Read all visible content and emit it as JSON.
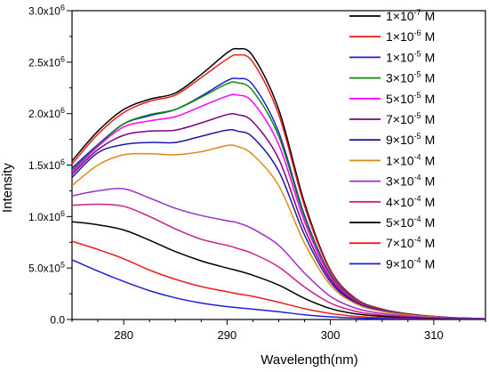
{
  "chart_data": {
    "type": "line",
    "title": "",
    "xlabel": "Wavelength(nm)",
    "ylabel": "Intensity",
    "xlim": [
      275,
      315
    ],
    "ylim": [
      0,
      3000000
    ],
    "x_ticks": [
      280,
      290,
      300,
      310
    ],
    "y_ticks": [
      {
        "mantissa": "0.0",
        "exp": ""
      },
      {
        "mantissa": "5.0x10",
        "exp": "5"
      },
      {
        "mantissa": "1.0x10",
        "exp": "6"
      },
      {
        "mantissa": "1.5x10",
        "exp": "6"
      },
      {
        "mantissa": "2.0x10",
        "exp": "6"
      },
      {
        "mantissa": "2.5x10",
        "exp": "6"
      },
      {
        "mantissa": "3.0x10",
        "exp": "6"
      }
    ],
    "legend_position": "top-right",
    "grid": false,
    "x": [
      275,
      277.5,
      280,
      282.5,
      285,
      287.5,
      290,
      291,
      292.5,
      295,
      297.5,
      300,
      302.5,
      305,
      307.5,
      310,
      312.5,
      315
    ],
    "series": [
      {
        "name_base": "1×10",
        "exp": "-7",
        "unit": "M",
        "color": "#000000",
        "values": [
          1540000,
          1830000,
          2040000,
          2140000,
          2200000,
          2380000,
          2590000,
          2630000,
          2560000,
          2040000,
          1130000,
          480000,
          200000,
          100000,
          55000,
          30000,
          15000,
          8000
        ]
      },
      {
        "name_base": "1×10",
        "exp": "-6",
        "unit": "M",
        "color": "#ee1c1c",
        "values": [
          1510000,
          1800000,
          2010000,
          2120000,
          2180000,
          2350000,
          2530000,
          2570000,
          2500000,
          1990000,
          1100000,
          470000,
          195000,
          98000,
          54000,
          29000,
          15000,
          8000
        ]
      },
      {
        "name_base": "1×10",
        "exp": "-5",
        "unit": "M",
        "color": "#1f1fd8",
        "values": [
          1470000,
          1700000,
          1900000,
          1980000,
          2040000,
          2170000,
          2320000,
          2340000,
          2280000,
          1820000,
          1010000,
          440000,
          185000,
          94000,
          52000,
          28000,
          14000,
          7000
        ]
      },
      {
        "name_base": "3×10",
        "exp": "-5",
        "unit": "M",
        "color": "#0a8c0a",
        "values": [
          1450000,
          1690000,
          1900000,
          1990000,
          2040000,
          2160000,
          2290000,
          2300000,
          2220000,
          1780000,
          990000,
          430000,
          182000,
          92000,
          51000,
          27000,
          14000,
          7000
        ]
      },
      {
        "name_base": "5×10",
        "exp": "-5",
        "unit": "M",
        "color": "#ff00ff",
        "values": [
          1430000,
          1680000,
          1870000,
          1930000,
          1970000,
          2070000,
          2170000,
          2180000,
          2110000,
          1700000,
          950000,
          415000,
          176000,
          89000,
          50000,
          27000,
          14000,
          7000
        ]
      },
      {
        "name_base": "7×10",
        "exp": "-5",
        "unit": "M",
        "color": "#800080",
        "values": [
          1410000,
          1650000,
          1790000,
          1830000,
          1840000,
          1910000,
          1990000,
          1990000,
          1920000,
          1560000,
          880000,
          390000,
          168000,
          86000,
          48000,
          26000,
          13000,
          7000
        ]
      },
      {
        "name_base": "9×10",
        "exp": "-5",
        "unit": "M",
        "color": "#1a1aa8",
        "values": [
          1380000,
          1620000,
          1700000,
          1720000,
          1720000,
          1780000,
          1840000,
          1830000,
          1770000,
          1440000,
          820000,
          365000,
          160000,
          82000,
          46000,
          25000,
          13000,
          7000
        ]
      },
      {
        "name_base": "1×10",
        "exp": "-4",
        "unit": "M",
        "color": "#dd8a1a",
        "values": [
          1300000,
          1500000,
          1600000,
          1610000,
          1600000,
          1630000,
          1690000,
          1680000,
          1600000,
          1300000,
          740000,
          335000,
          150000,
          78000,
          44000,
          24000,
          12000,
          6000
        ]
      },
      {
        "name_base": "3×10",
        "exp": "-4",
        "unit": "M",
        "color": "#9b30c8",
        "values": [
          1200000,
          1250000,
          1270000,
          1180000,
          1080000,
          1010000,
          960000,
          940000,
          880000,
          720000,
          450000,
          225000,
          108000,
          58000,
          33000,
          18000,
          9000,
          5000
        ]
      },
      {
        "name_base": "4×10",
        "exp": "-4",
        "unit": "M",
        "color": "#cc1f86",
        "values": [
          1110000,
          1120000,
          1100000,
          1000000,
          880000,
          780000,
          720000,
          690000,
          640000,
          510000,
          315000,
          160000,
          78000,
          42000,
          24000,
          13000,
          7000,
          4000
        ]
      },
      {
        "name_base": "5×10",
        "exp": "-4",
        "unit": "M",
        "color": "#000000",
        "values": [
          950000,
          920000,
          870000,
          770000,
          660000,
          570000,
          500000,
          475000,
          430000,
          335000,
          205000,
          106000,
          54000,
          30000,
          17000,
          10000,
          5000,
          3000
        ]
      },
      {
        "name_base": "7×10",
        "exp": "-4",
        "unit": "M",
        "color": "#ee1c1c",
        "values": [
          760000,
          680000,
          590000,
          480000,
          390000,
          320000,
          270000,
          250000,
          225000,
          168000,
          105000,
          58000,
          30000,
          17000,
          10000,
          6000,
          3000,
          2000
        ]
      },
      {
        "name_base": "9×10",
        "exp": "-4",
        "unit": "M",
        "color": "#1f1fd8",
        "values": [
          580000,
          470000,
          370000,
          280000,
          210000,
          160000,
          125000,
          115000,
          100000,
          75000,
          46000,
          26000,
          14000,
          8000,
          5000,
          3000,
          2000,
          1000
        ]
      }
    ]
  }
}
